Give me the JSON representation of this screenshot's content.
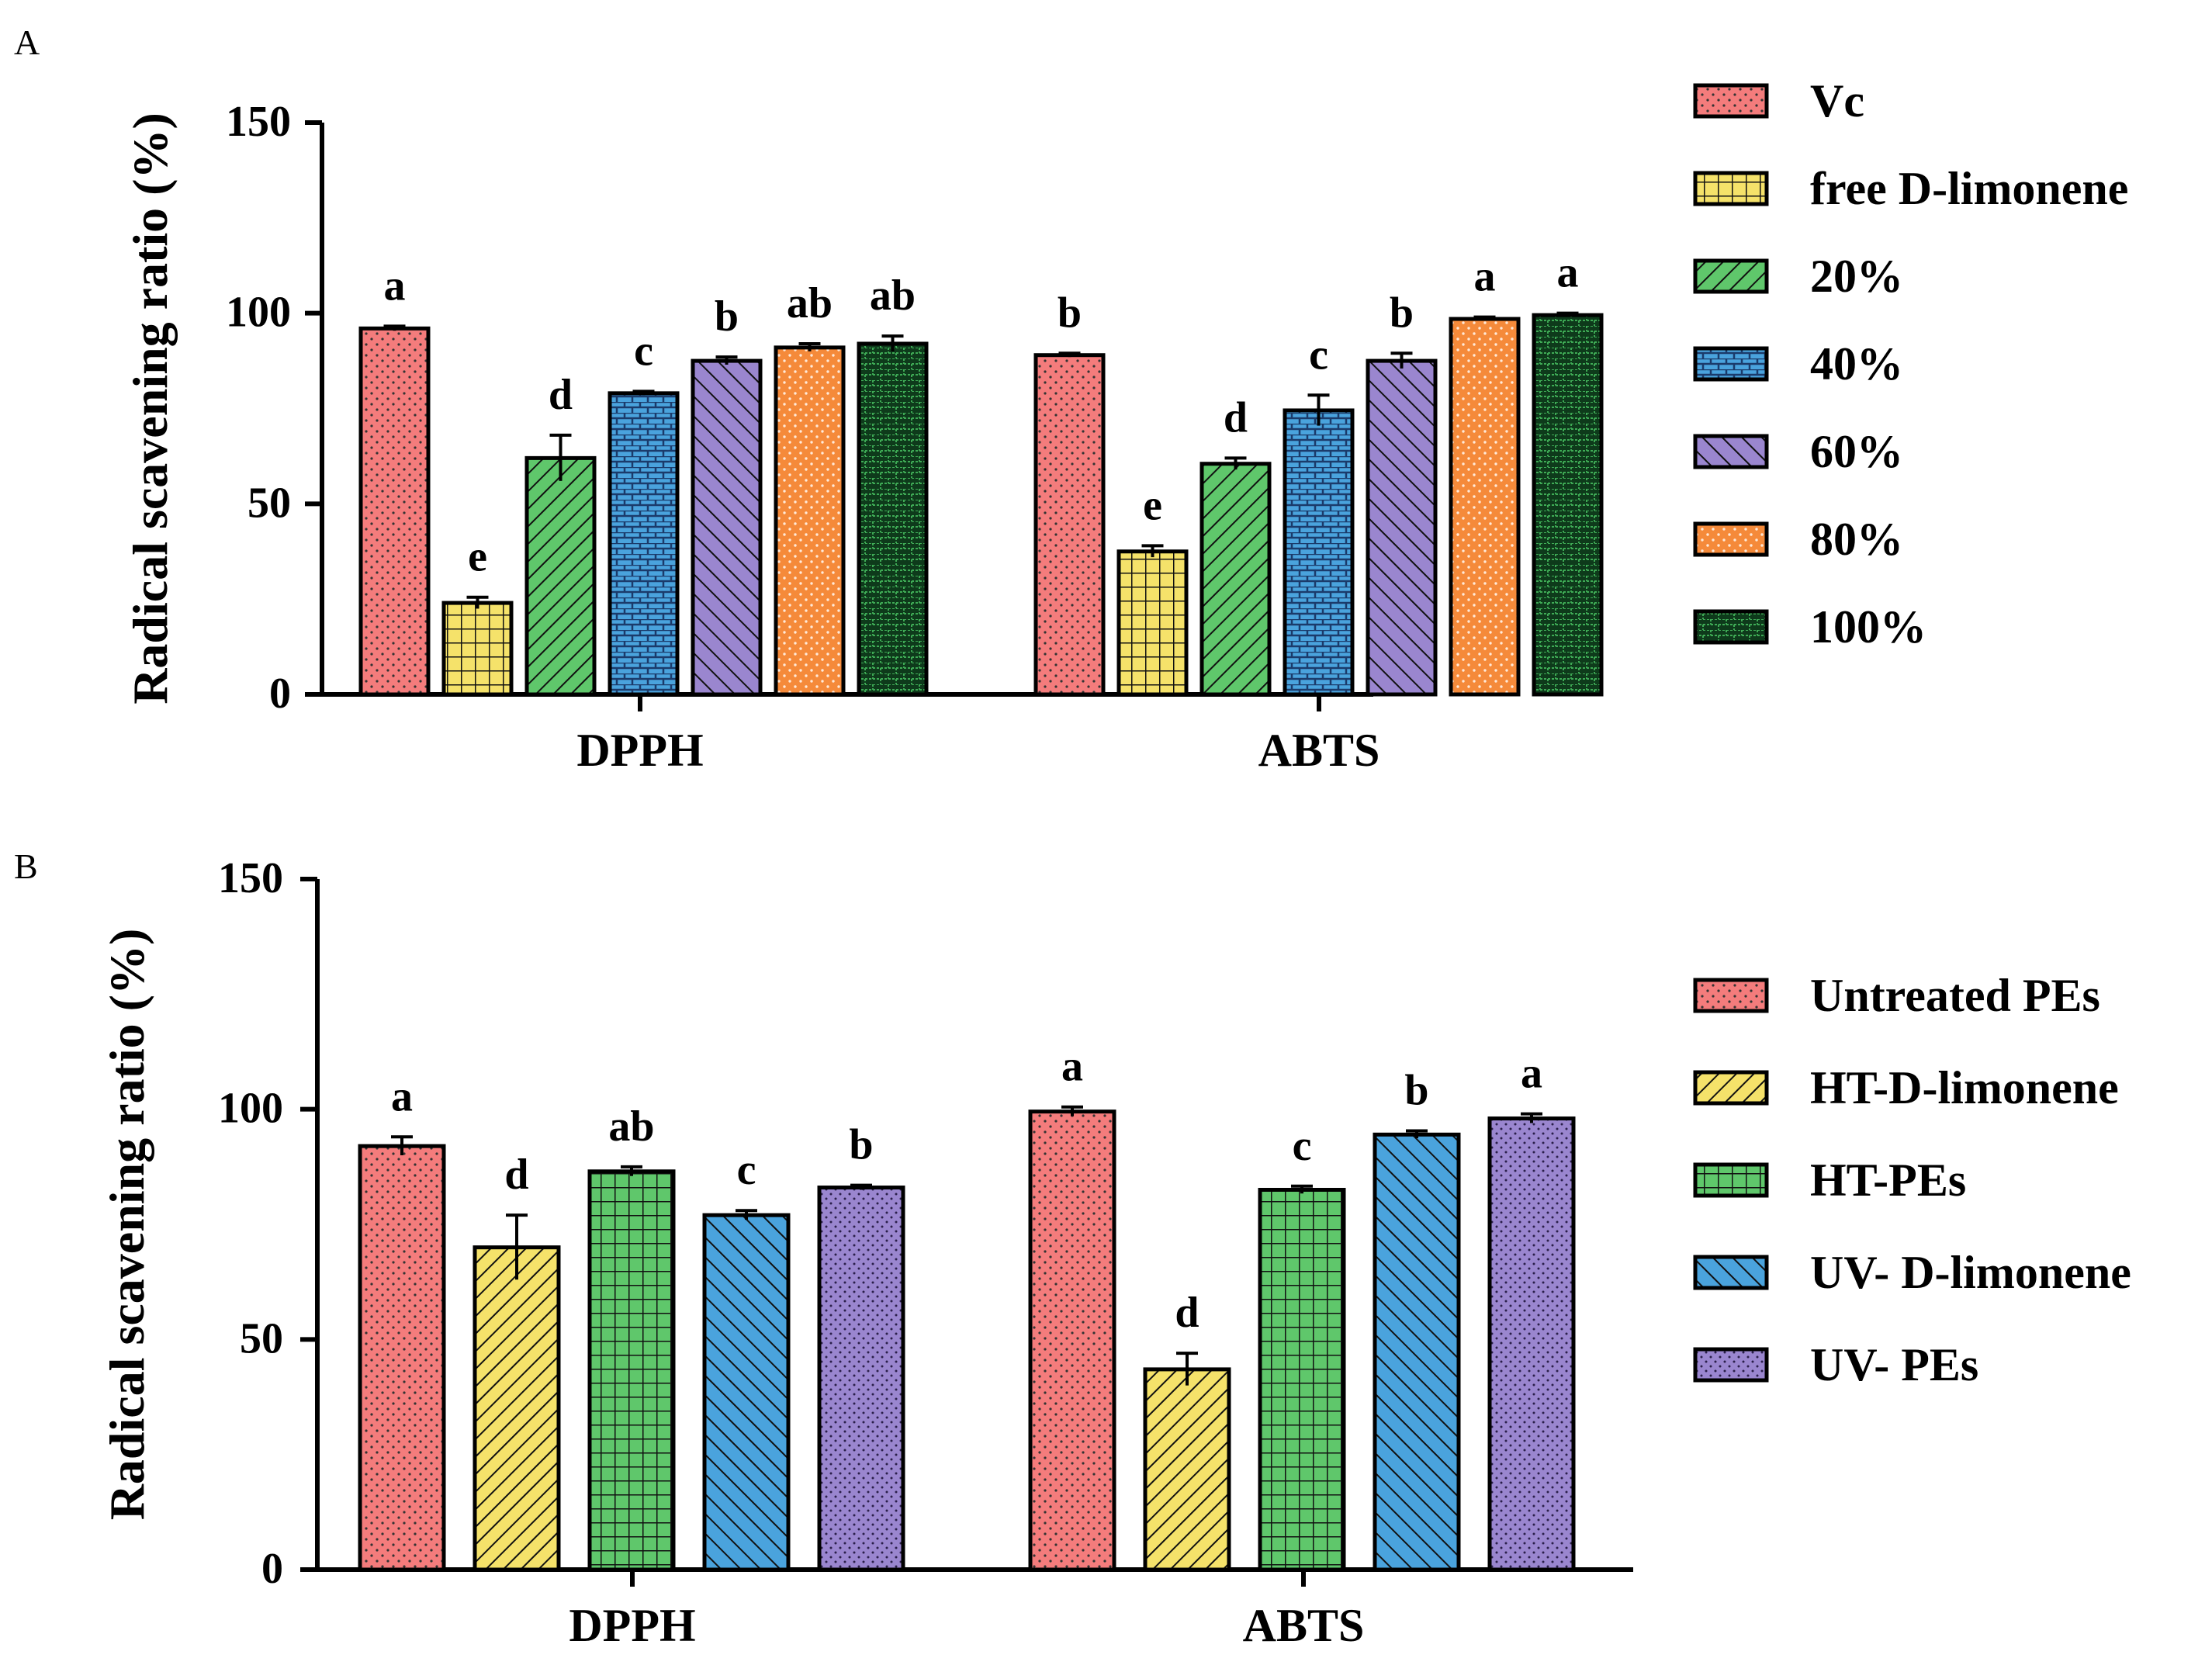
{
  "chart_data": [
    {
      "panel_label": "A",
      "type": "bar",
      "title": "",
      "xlabel": "",
      "ylabel": "Radical scavening ratio (%)",
      "ylim": [
        0,
        150
      ],
      "yticks": [
        0,
        50,
        100,
        150
      ],
      "categories": [
        "DPPH",
        "ABTS"
      ],
      "grid": false,
      "legend_position": "right",
      "series": [
        {
          "name": "Vc",
          "color": "#F47C7C",
          "pattern": "dots",
          "values": [
            96,
            89
          ],
          "errors": [
            0.6,
            0.5
          ],
          "letters": [
            "a",
            "b"
          ]
        },
        {
          "name": "free D-limonene",
          "color": "#F5E26A",
          "pattern": "grid",
          "values": [
            24,
            37.5
          ],
          "errors": [
            1.5,
            1.5
          ],
          "letters": [
            "e",
            "e"
          ]
        },
        {
          "name": "20%",
          "color": "#5FC76B",
          "pattern": "diag-right",
          "values": [
            62,
            60.5
          ],
          "errors": [
            6,
            1.5
          ],
          "letters": [
            "d",
            "d"
          ]
        },
        {
          "name": "40%",
          "color": "#4AA3DD",
          "pattern": "brick",
          "values": [
            79,
            74.5
          ],
          "errors": [
            0.5,
            4
          ],
          "letters": [
            "c",
            "c"
          ]
        },
        {
          "name": "60%",
          "color": "#9A86CF",
          "pattern": "diag-left",
          "values": [
            87.5,
            87.5
          ],
          "errors": [
            1,
            2
          ],
          "letters": [
            "b",
            "b"
          ]
        },
        {
          "name": "80%",
          "color": "#F58A3A",
          "pattern": "dots-light",
          "values": [
            91,
            98.5
          ],
          "errors": [
            1,
            0.5
          ],
          "letters": [
            "ab",
            "a"
          ]
        },
        {
          "name": "100%",
          "color": "#0E3A1B",
          "pattern": "brick-green",
          "values": [
            92,
            99.5
          ],
          "errors": [
            2,
            0.5
          ],
          "letters": [
            "ab",
            "a"
          ]
        }
      ]
    },
    {
      "panel_label": "B",
      "type": "bar",
      "title": "",
      "xlabel": "",
      "ylabel": "Radical scavening ratio (%)",
      "ylim": [
        0,
        150
      ],
      "yticks": [
        0,
        50,
        100,
        150
      ],
      "categories": [
        "DPPH",
        "ABTS"
      ],
      "grid": false,
      "legend_position": "right",
      "series": [
        {
          "name": "Untreated PEs",
          "color": "#F47C7C",
          "pattern": "dots",
          "values": [
            92,
            99.5
          ],
          "errors": [
            2,
            1
          ],
          "letters": [
            "a",
            "a"
          ]
        },
        {
          "name": "HT-D-limonene",
          "color": "#F5E26A",
          "pattern": "diag-right",
          "values": [
            70,
            43.5
          ],
          "errors": [
            7,
            3.5
          ],
          "letters": [
            "d",
            "d"
          ]
        },
        {
          "name": "HT-PEs",
          "color": "#5FC76B",
          "pattern": "grid",
          "values": [
            86.5,
            82.5
          ],
          "errors": [
            1,
            0.8
          ],
          "letters": [
            "ab",
            "c"
          ]
        },
        {
          "name": "UV- D-limonene",
          "color": "#4AA3DD",
          "pattern": "diag-left",
          "values": [
            77,
            94.5
          ],
          "errors": [
            1,
            0.8
          ],
          "letters": [
            "c",
            "b"
          ]
        },
        {
          "name": "UV- PEs",
          "color": "#9A86CF",
          "pattern": "dots-purple",
          "values": [
            83,
            98
          ],
          "errors": [
            0.5,
            1
          ],
          "letters": [
            "b",
            "a"
          ]
        }
      ]
    }
  ]
}
